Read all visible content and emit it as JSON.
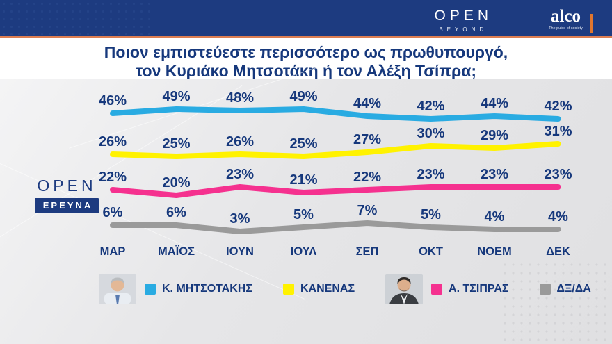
{
  "top_bar": {
    "open_logo": "OPEN",
    "open_sub": "BEYOND",
    "alco_logo": "alco",
    "alco_tagline": "The pulse of society"
  },
  "title": {
    "line1": "Ποιον εμπιστεύεστε περισσότερο ως πρωθυπουργό,",
    "line2": "τον Κυριάκο Μητσοτάκη ή τον Αλέξη Τσίπρα;"
  },
  "watermark": {
    "brand": "OPEN",
    "sub": "ΕΡΕΥΝΑ"
  },
  "chart_data": {
    "type": "line",
    "title": "Ποιον εμπιστεύεστε περισσότερο ως πρωθυπουργό, τον Κυριάκο Μητσοτάκη ή τον Αλέξη Τσίπρα;",
    "categories": [
      "ΜΑΡ",
      "ΜΑΪΟΣ",
      "ΙΟΥΝ",
      "ΙΟΥΛ",
      "ΣΕΠ",
      "ΟΚΤ",
      "ΝΟΕΜ",
      "ΔΕΚ"
    ],
    "series": [
      {
        "name": "Κ. ΜΗΤΣΟΤΑΚΗΣ",
        "color": "#29abe2",
        "values": [
          46,
          49,
          48,
          49,
          44,
          42,
          44,
          42
        ]
      },
      {
        "name": "ΚΑΝΕΝΑΣ",
        "color": "#fff200",
        "values": [
          26,
          25,
          26,
          25,
          27,
          30,
          29,
          31
        ]
      },
      {
        "name": "Α. ΤΣΙΠΡΑΣ",
        "color": "#f5318f",
        "values": [
          22,
          20,
          23,
          21,
          22,
          23,
          23,
          23
        ]
      },
      {
        "name": "ΔΞ/ΔΑ",
        "color": "#9a9a9a",
        "values": [
          6,
          6,
          3,
          5,
          7,
          5,
          4,
          4
        ]
      }
    ],
    "value_suffix": "%",
    "data_labels": true,
    "grid": false,
    "legend_position": "bottom",
    "label_color": "#16387c"
  },
  "legend": {
    "items": [
      {
        "label": "Κ. ΜΗΤΣΟΤΑΚΗΣ",
        "color": "#29abe2",
        "photo": "mitsotakis"
      },
      {
        "label": "ΚΑΝΕΝΑΣ",
        "color": "#fff200",
        "photo": null
      },
      {
        "label": "Α. ΤΣΙΠΡΑΣ",
        "color": "#f5318f",
        "photo": "tsipras"
      },
      {
        "label": "ΔΞ/ΔΑ",
        "color": "#9a9a9a",
        "photo": null
      }
    ]
  },
  "colors": {
    "navy_text": "#16387c",
    "topbar_navy": "#1d3b80",
    "accent_orange": "#dd7e52"
  }
}
